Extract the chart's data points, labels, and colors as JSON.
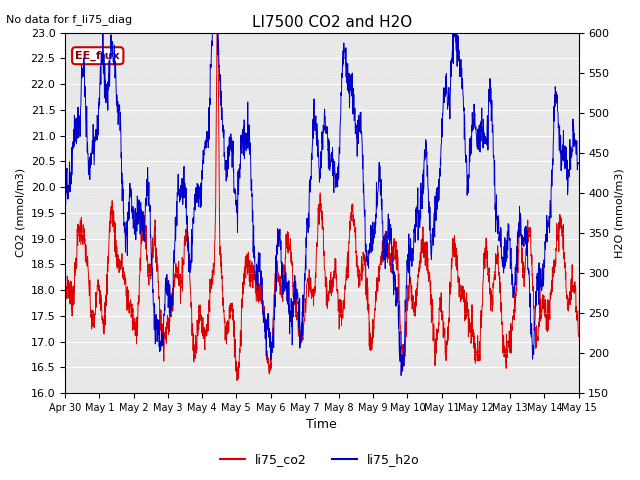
{
  "title": "LI7500 CO2 and H2O",
  "subtitle": "No data for f_li75_diag",
  "annotation": "EE_flux",
  "xlabel": "Time",
  "ylabel_left": "CO2 (mmol/m3)",
  "ylabel_right": "H2O (mmol/m3)",
  "ylim_left": [
    16.0,
    23.0
  ],
  "ylim_right": [
    150,
    600
  ],
  "co2_color": "#dd0000",
  "h2o_color": "#0000cc",
  "x_tick_labels": [
    "Apr 30",
    "May 1",
    "May 2",
    "May 3",
    "May 4",
    "May 5",
    "May 6",
    "May 7",
    "May 8",
    "May 9",
    "May 10",
    "May 11",
    "May 12",
    "May 13",
    "May 14",
    "May 15"
  ],
  "legend_labels": [
    "li75_co2",
    "li75_h2o"
  ],
  "bg_color": "#ffffff",
  "plot_bg_color": "#e8e8e8",
  "grid_color": "#ffffff"
}
